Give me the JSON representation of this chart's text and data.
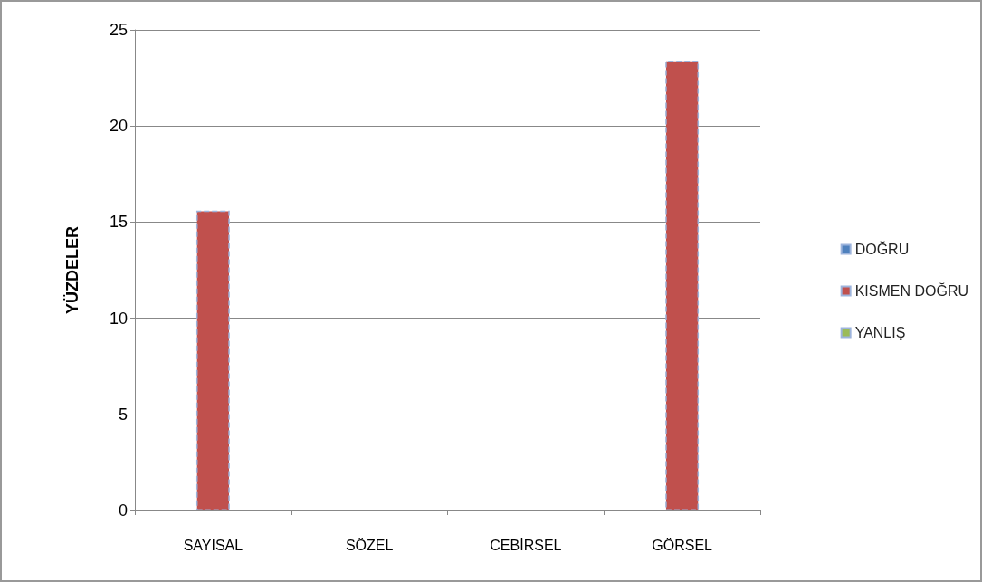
{
  "chart_data": {
    "type": "bar",
    "ylabel": "YÜZDELER",
    "categories": [
      "SAYISAL",
      "SÖZEL",
      "CEBİRSEL",
      "GÖRSEL"
    ],
    "series": [
      {
        "name": "DOĞRU",
        "color": "#4f81bd",
        "values": [
          0,
          0,
          0,
          0
        ]
      },
      {
        "name": "KISMEN DOĞRU",
        "color": "#c0504d",
        "values": [
          15.6,
          0,
          0,
          23.4
        ]
      },
      {
        "name": "YANLIŞ",
        "color": "#9bbb59",
        "values": [
          0,
          0,
          0,
          0
        ]
      }
    ],
    "ylim": [
      0,
      25
    ],
    "yticks": [
      0,
      5,
      10,
      15,
      20,
      25
    ],
    "grid": "y",
    "legend": "right"
  }
}
